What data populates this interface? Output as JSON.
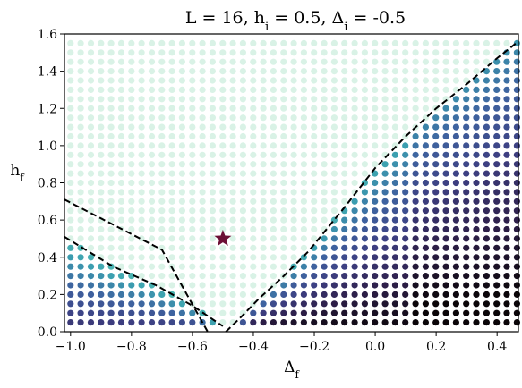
{
  "chart_data": {
    "type": "scatter",
    "title_parts": [
      "L = 16, h",
      "i",
      " = 0.5, Δ",
      "i",
      " = -0.5"
    ],
    "xlabel_parts": [
      "Δ",
      "f"
    ],
    "ylabel_parts": [
      "h",
      "f"
    ],
    "xlim": [
      -1.02,
      0.47
    ],
    "ylim": [
      0.0,
      1.6
    ],
    "x_ticks": [
      -1.0,
      -0.8,
      -0.6,
      -0.4,
      -0.2,
      0.0,
      0.2,
      0.4
    ],
    "x_tick_labels": [
      "−1.0",
      "−0.8",
      "−0.6",
      "−0.4",
      "−0.2",
      "0.0",
      "0.2",
      "0.4"
    ],
    "y_ticks": [
      0.0,
      0.2,
      0.4,
      0.6,
      0.8,
      1.0,
      1.2,
      1.4,
      1.6
    ],
    "y_tick_labels": [
      "0.0",
      "0.2",
      "0.4",
      "0.6",
      "0.8",
      "1.0",
      "1.2",
      "1.4",
      "1.6"
    ],
    "grid": false,
    "grid_points": {
      "x_start": -1.0,
      "x_step": 0.0333,
      "x_count": 45,
      "y_start": 0.05,
      "y_step": 0.05,
      "y_count": 31
    },
    "colormap": [
      "#d9f2e6",
      "#5fcdb4",
      "#3b9fb0",
      "#3e63a0",
      "#3d3f82",
      "#2e1f4a",
      "#0a0508"
    ],
    "marker_star": {
      "x": -0.5,
      "y": 0.5,
      "color": "#6b0f35"
    },
    "dashed_boundaries": [
      {
        "name": "left-upper",
        "points": [
          [
            -1.02,
            0.71
          ],
          [
            -0.7,
            0.44
          ],
          [
            -0.55,
            0.0
          ]
        ]
      },
      {
        "name": "left-lower",
        "points": [
          [
            -1.02,
            0.51
          ],
          [
            -0.86,
            0.35
          ],
          [
            -0.72,
            0.25
          ],
          [
            -0.6,
            0.14
          ],
          [
            -0.5,
            0.03
          ]
        ]
      },
      {
        "name": "right",
        "points": [
          [
            -0.49,
            0.0
          ],
          [
            -0.44,
            0.08
          ],
          [
            -0.38,
            0.18
          ],
          [
            -0.3,
            0.3
          ],
          [
            -0.22,
            0.43
          ],
          [
            -0.1,
            0.67
          ],
          [
            0.0,
            0.88
          ],
          [
            0.1,
            1.05
          ],
          [
            0.2,
            1.2
          ],
          [
            0.3,
            1.33
          ],
          [
            0.4,
            1.47
          ],
          [
            0.47,
            1.56
          ]
        ]
      }
    ]
  }
}
